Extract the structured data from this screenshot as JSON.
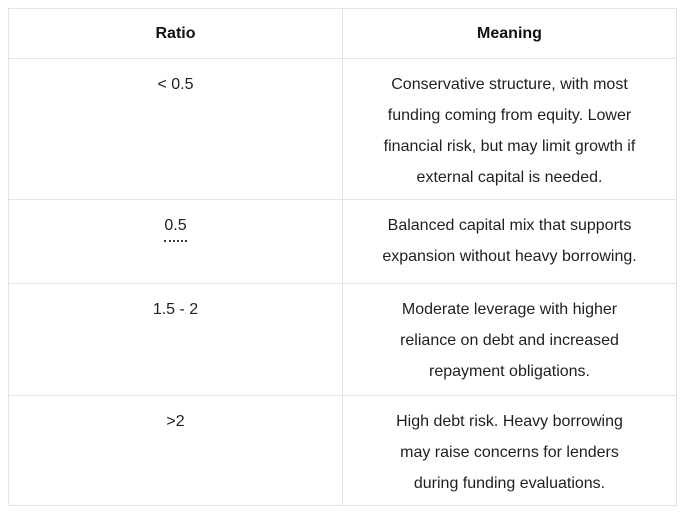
{
  "table": {
    "columns": [
      {
        "label": "Ratio"
      },
      {
        "label": "Meaning"
      }
    ],
    "rows": [
      {
        "ratio": "< 0.5",
        "meaning_lines": [
          "Conservative structure, with most",
          "funding coming from equity. Lower",
          "financial risk, but may limit growth if",
          "external capital is needed."
        ]
      },
      {
        "ratio": "0.5",
        "ratio_annotation": "dotted-underline",
        "meaning_lines": [
          "Balanced capital mix that supports",
          "expansion without heavy borrowing."
        ]
      },
      {
        "ratio": "1.5 - 2",
        "meaning_lines": [
          "Moderate leverage with higher",
          "reliance on debt and increased",
          "repayment obligations."
        ]
      },
      {
        "ratio": ">2",
        "meaning_lines": [
          "High debt risk. Heavy borrowing",
          "may raise concerns for lenders",
          "during funding evaluations."
        ]
      }
    ],
    "colors": {
      "border": "#e3e3e3",
      "text": "#1f1f1f",
      "header_text": "#111111",
      "background": "#ffffff"
    }
  }
}
